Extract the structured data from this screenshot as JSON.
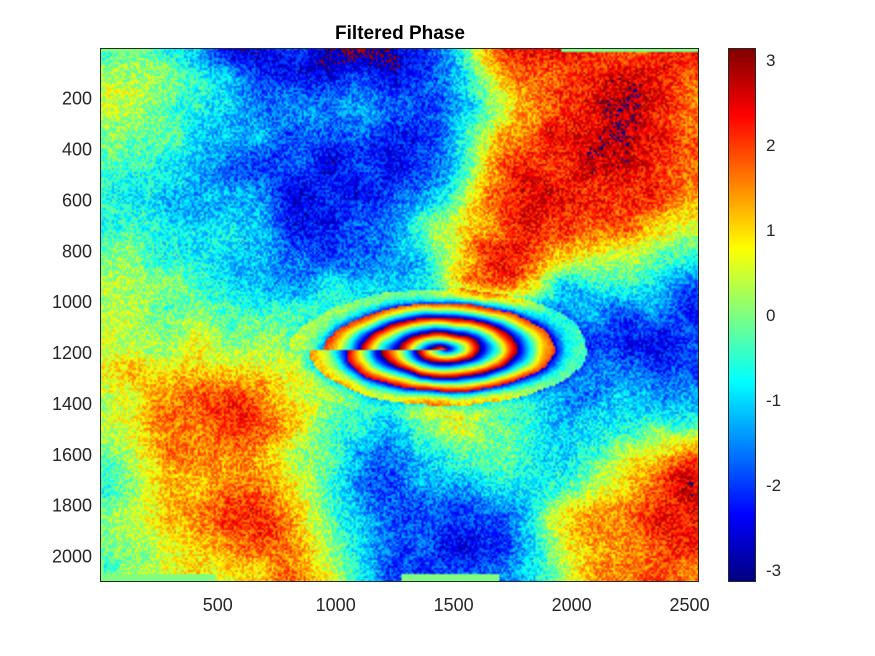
{
  "chart_data": {
    "type": "heatmap",
    "title": "Filtered Phase",
    "xlabel": "",
    "ylabel": "",
    "x_ticks": [
      500,
      1000,
      1500,
      2000,
      2500
    ],
    "x_tick_labels": [
      "500",
      "1000",
      "1500",
      "2000",
      "2500"
    ],
    "y_ticks": [
      200,
      400,
      600,
      800,
      1000,
      1200,
      1400,
      1600,
      1800,
      2000
    ],
    "y_tick_labels": [
      "200",
      "400",
      "600",
      "800",
      "1000",
      "1200",
      "1400",
      "1600",
      "1800",
      "2000"
    ],
    "xlim": [
      1,
      2540
    ],
    "ylim": [
      1,
      2100
    ],
    "y_direction": "reverse",
    "colormap": "jet",
    "clim": [
      -3.1416,
      3.1416
    ],
    "colorbar": {
      "ticks": [
        -3,
        -2,
        -1,
        0,
        1,
        2,
        3
      ],
      "tick_labels": [
        "-3",
        "-2",
        "-1",
        "0",
        "1",
        "2",
        "3"
      ],
      "location": "right"
    },
    "fringe_center": [
      1450,
      1250
    ],
    "regions": [
      {
        "region": "north-west",
        "dominant_phase": -1.0
      },
      {
        "region": "north-center",
        "dominant_phase": -2.4
      },
      {
        "region": "north-east",
        "dominant_phase": 2.4
      },
      {
        "region": "center (concentric deformation fringes)",
        "dominant_phase": "cycles -3.14 to 3.14"
      },
      {
        "region": "south-west",
        "dominant_phase": 2.3
      },
      {
        "region": "south-center",
        "dominant_phase": -2.3
      },
      {
        "region": "south-east",
        "dominant_phase": 2.4
      },
      {
        "region": "no-data border",
        "dominant_phase": 0.4
      }
    ],
    "grid": false
  }
}
